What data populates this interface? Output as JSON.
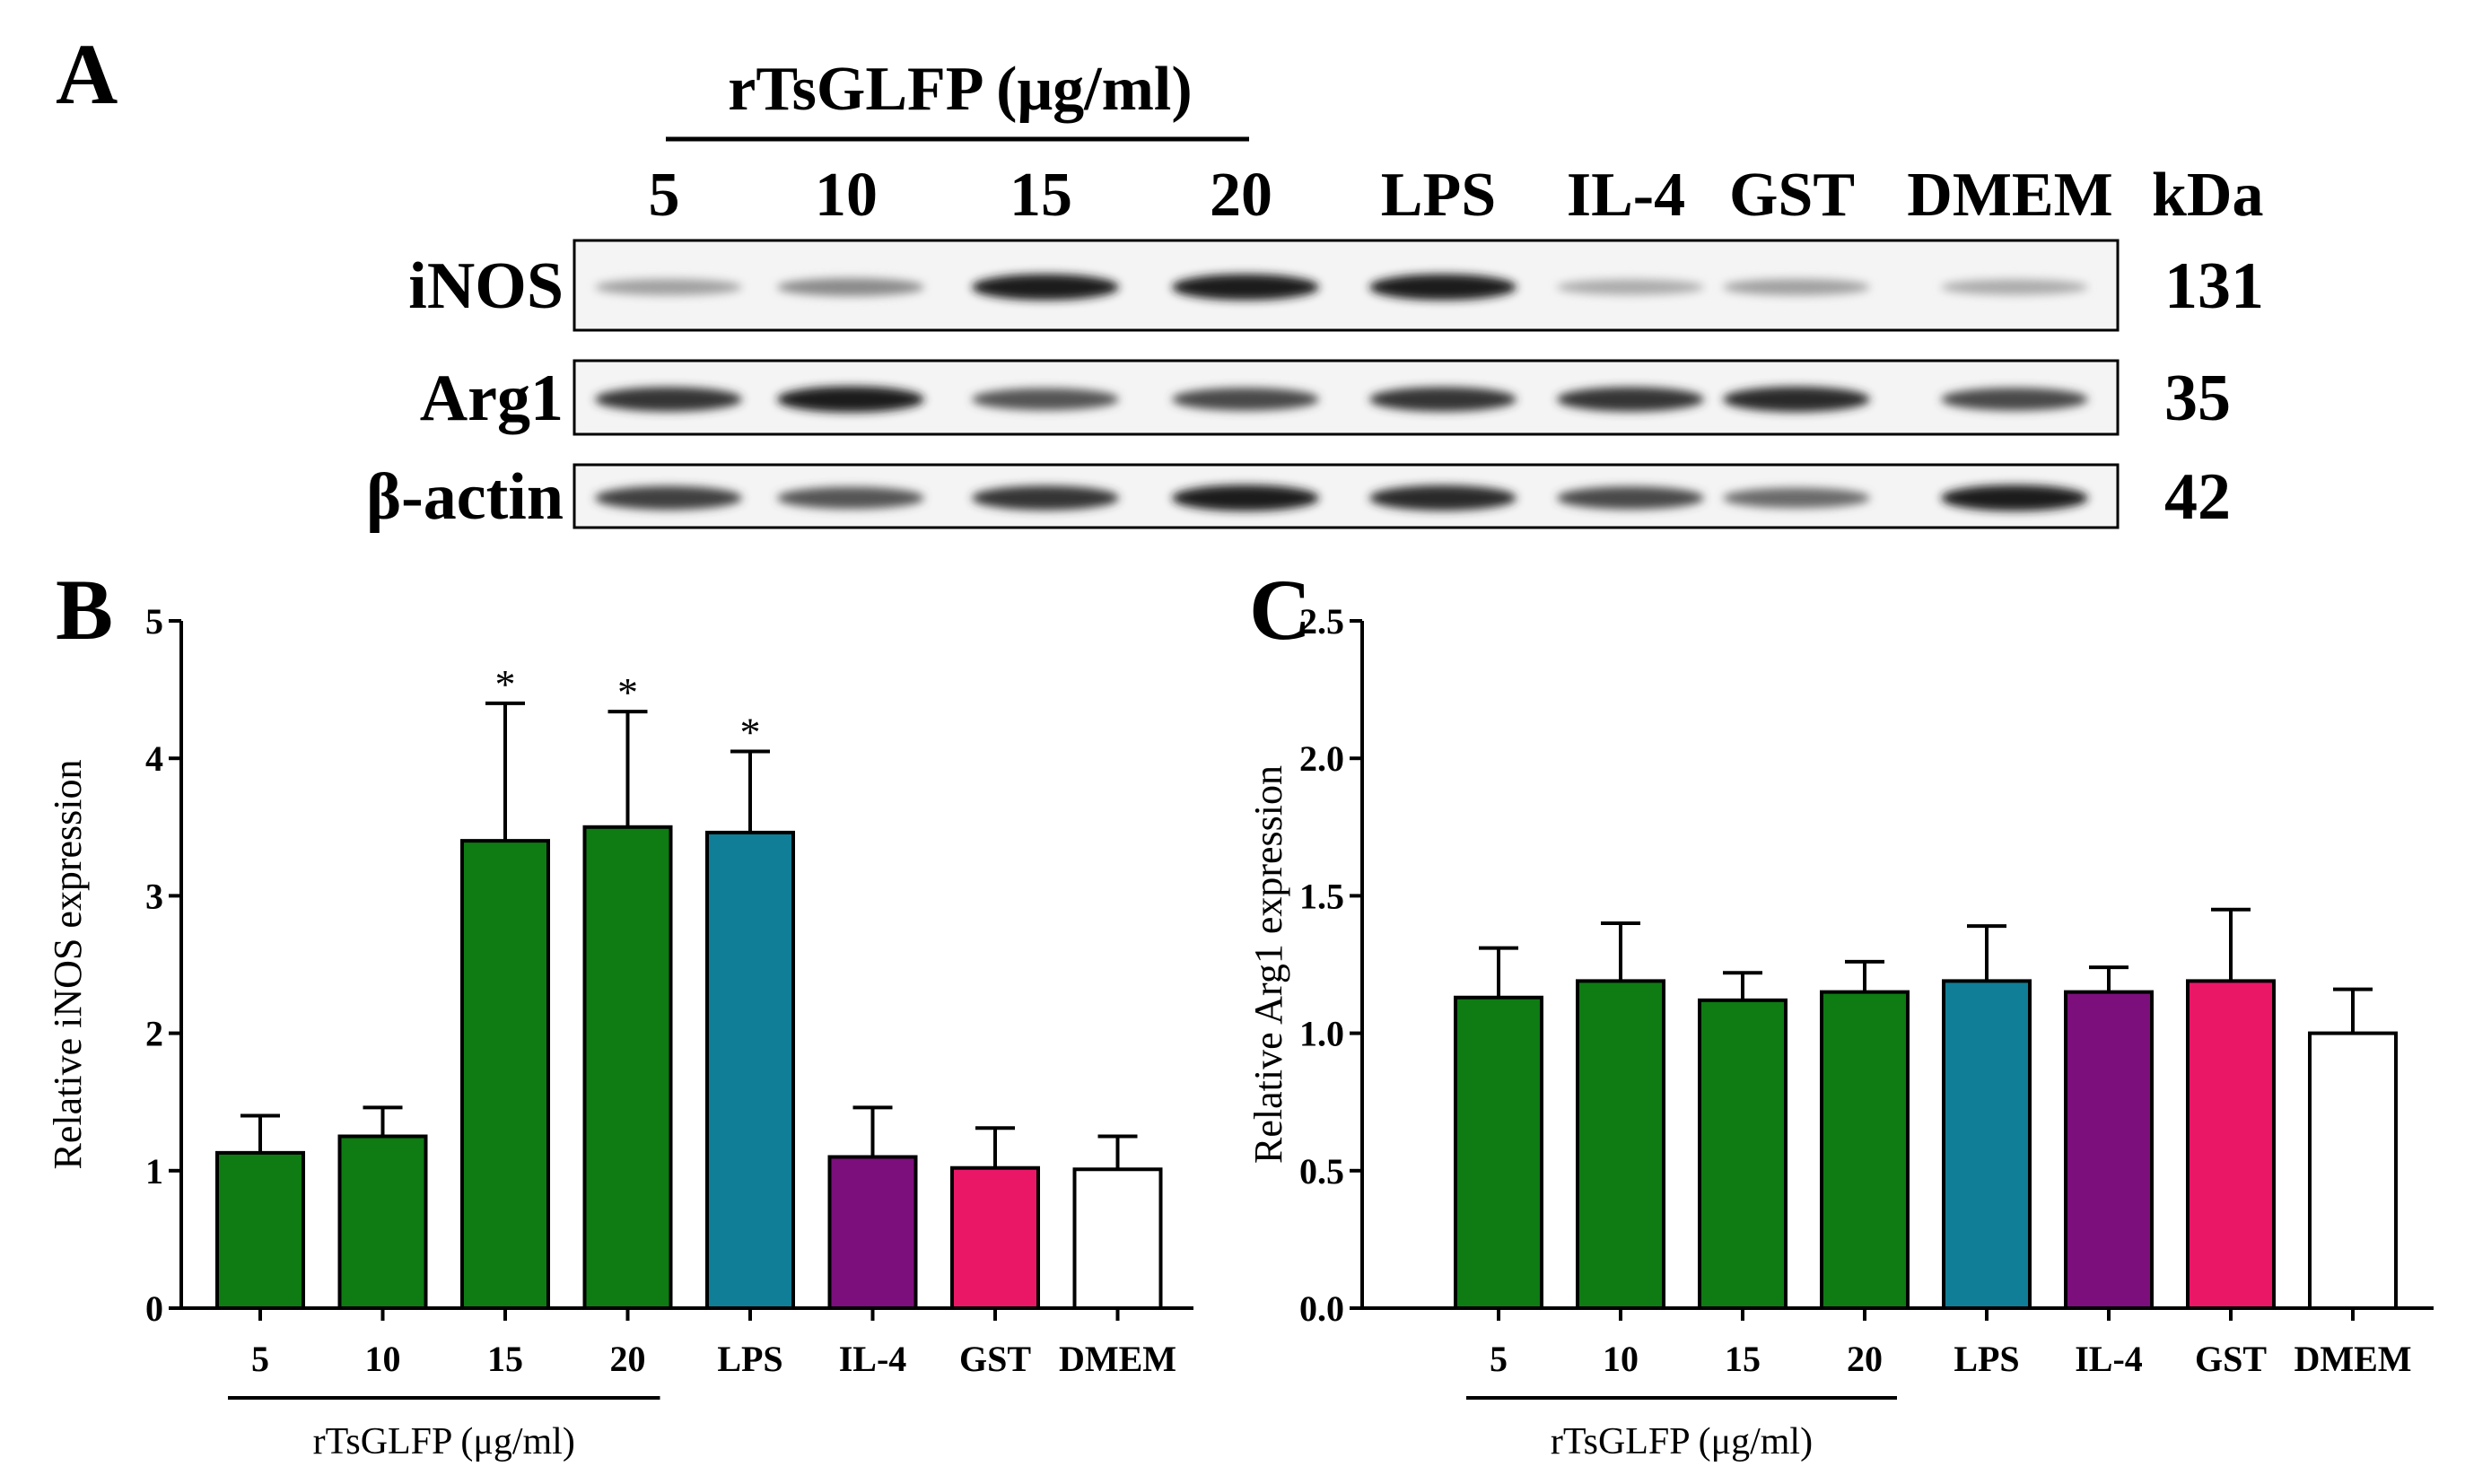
{
  "panels": {
    "a_label": "A",
    "b_label": "B",
    "c_label": "C"
  },
  "blot": {
    "group_label": "rTsGLFP (μg/ml)",
    "lanes": [
      "5",
      "10",
      "15",
      "20",
      "LPS",
      "IL-4",
      "GST",
      "DMEM"
    ],
    "kda_label": "kDa",
    "rows": [
      {
        "name": "iNOS",
        "kda": "131",
        "intensity": [
          0.35,
          0.45,
          0.95,
          0.95,
          0.95,
          0.3,
          0.35,
          0.3
        ]
      },
      {
        "name": "Arg1",
        "kda": "35",
        "intensity": [
          0.85,
          0.95,
          0.7,
          0.75,
          0.85,
          0.85,
          0.9,
          0.75
        ]
      },
      {
        "name": "β-actin",
        "kda": "42",
        "intensity": [
          0.8,
          0.7,
          0.85,
          0.95,
          0.9,
          0.75,
          0.6,
          0.95
        ]
      }
    ]
  },
  "colors": {
    "green": "#0e7b13",
    "teal": "#0f7e96",
    "purple": "#7c0f7c",
    "pink": "#ea1767",
    "white": "#ffffff",
    "axis": "#000000"
  },
  "chart_data": [
    {
      "type": "bar",
      "panel": "B",
      "categories": [
        "5",
        "10",
        "15",
        "20",
        "LPS",
        "IL-4",
        "GST",
        "DMEM"
      ],
      "values": [
        1.13,
        1.25,
        3.4,
        3.5,
        3.46,
        1.1,
        1.02,
        1.01
      ],
      "errors": [
        0.27,
        0.21,
        1.0,
        0.84,
        0.59,
        0.36,
        0.29,
        0.24
      ],
      "significance": [
        "",
        "",
        "*",
        "*",
        "*",
        "",
        "",
        ""
      ],
      "bar_colors": [
        "#0e7b13",
        "#0e7b13",
        "#0e7b13",
        "#0e7b13",
        "#0f7e96",
        "#7c0f7c",
        "#ea1767",
        "#ffffff"
      ],
      "ylabel": "Relative iNOS expression",
      "xlabel": "rTsGLFP (μg/ml)",
      "ylim": [
        0,
        5
      ],
      "yticks": [
        "0",
        "1",
        "2",
        "3",
        "4",
        "5"
      ],
      "grid": false
    },
    {
      "type": "bar",
      "panel": "C",
      "categories": [
        "5",
        "10",
        "15",
        "20",
        "LPS",
        "IL-4",
        "GST",
        "DMEM"
      ],
      "values": [
        1.13,
        1.19,
        1.12,
        1.15,
        1.19,
        1.15,
        1.19,
        1.0
      ],
      "errors": [
        0.18,
        0.21,
        0.1,
        0.11,
        0.2,
        0.09,
        0.26,
        0.16
      ],
      "significance": [
        "",
        "",
        "",
        "",
        "",
        "",
        "",
        ""
      ],
      "bar_colors": [
        "#0e7b13",
        "#0e7b13",
        "#0e7b13",
        "#0e7b13",
        "#0f7e96",
        "#7c0f7c",
        "#ea1767",
        "#ffffff"
      ],
      "ylabel": "Relative Arg1 expression",
      "xlabel": "rTsGLFP (μg/ml)",
      "ylim": [
        0,
        2.5
      ],
      "yticks": [
        "0.0",
        "0.5",
        "1.0",
        "1.5",
        "2.0",
        "2.5"
      ],
      "grid": false
    }
  ]
}
